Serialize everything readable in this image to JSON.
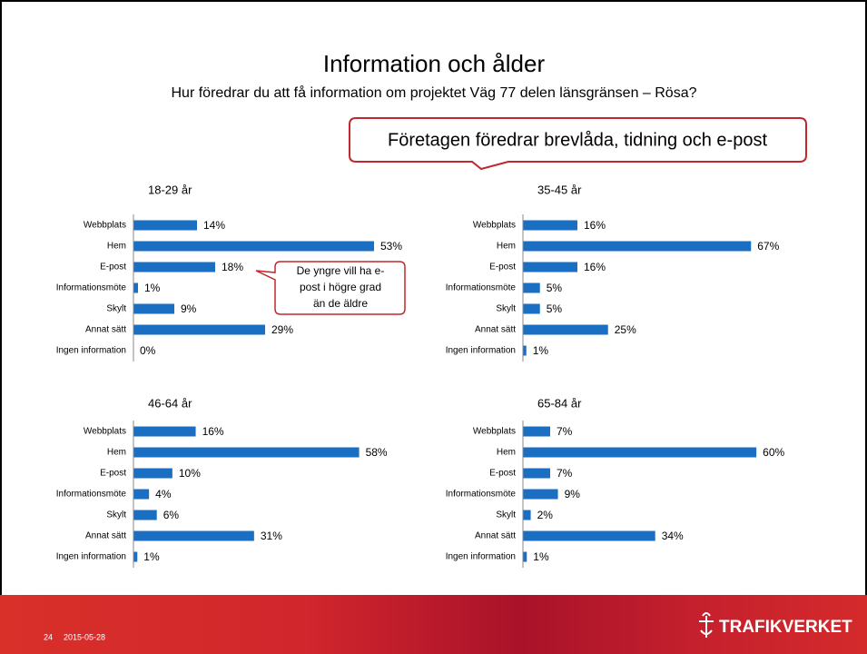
{
  "slide": {
    "title": "Information och ålder",
    "subtitle": "Hur föredrar du att få information om projektet Väg 77 delen länsgränsen – Rösa?",
    "callout": "Företagen föredrar brevlåda, tidning och e-post",
    "note": [
      "De yngre vill ha e-",
      "post  i högre grad",
      "än de äldre"
    ],
    "page": "24",
    "date": "2015-05-28",
    "logo": "TRAFIKVERKET"
  },
  "chart_data": [
    {
      "type": "barh",
      "title": "18-29 år",
      "categories": [
        "Webbplats",
        "Hem",
        "E-post",
        "Informationsmöte",
        "Skylt",
        "Annat sätt",
        "Ingen information"
      ],
      "values": [
        14,
        53,
        18,
        1,
        9,
        29,
        0
      ],
      "value_labels": [
        "14%",
        "53%",
        "18%",
        "1%",
        "9%",
        "29%",
        "0%"
      ],
      "color": "#1b6fc2",
      "xlim": [
        0,
        60
      ],
      "grid": false
    },
    {
      "type": "barh",
      "title": "35-45 år",
      "categories": [
        "Webbplats",
        "Hem",
        "E-post",
        "Informationsmöte",
        "Skylt",
        "Annat sätt",
        "Ingen information"
      ],
      "values": [
        16,
        67,
        16,
        5,
        5,
        25,
        1
      ],
      "value_labels": [
        "16%",
        "67%",
        "16%",
        "5%",
        "5%",
        "25%",
        "1%"
      ],
      "color": "#1b6fc2",
      "xlim": [
        0,
        80
      ],
      "grid": false
    },
    {
      "type": "barh",
      "title": "46-64 år",
      "categories": [
        "Webbplats",
        "Hem",
        "E-post",
        "Informationsmöte",
        "Skylt",
        "Annat sätt",
        "Ingen information"
      ],
      "values": [
        16,
        58,
        10,
        4,
        6,
        31,
        1
      ],
      "value_labels": [
        "16%",
        "58%",
        "10%",
        "4%",
        "6%",
        "31%",
        "1%"
      ],
      "color": "#1b6fc2",
      "xlim": [
        0,
        70
      ],
      "grid": false
    },
    {
      "type": "barh",
      "title": "65-84 år",
      "categories": [
        "Webbplats",
        "Hem",
        "E-post",
        "Informationsmöte",
        "Skylt",
        "Annat sätt",
        "Ingen information"
      ],
      "values": [
        7,
        60,
        7,
        9,
        2,
        34,
        1
      ],
      "value_labels": [
        "7%",
        "60%",
        "7%",
        "9%",
        "2%",
        "34%",
        "1%"
      ],
      "color": "#1b6fc2",
      "xlim": [
        0,
        70
      ],
      "grid": false
    }
  ]
}
